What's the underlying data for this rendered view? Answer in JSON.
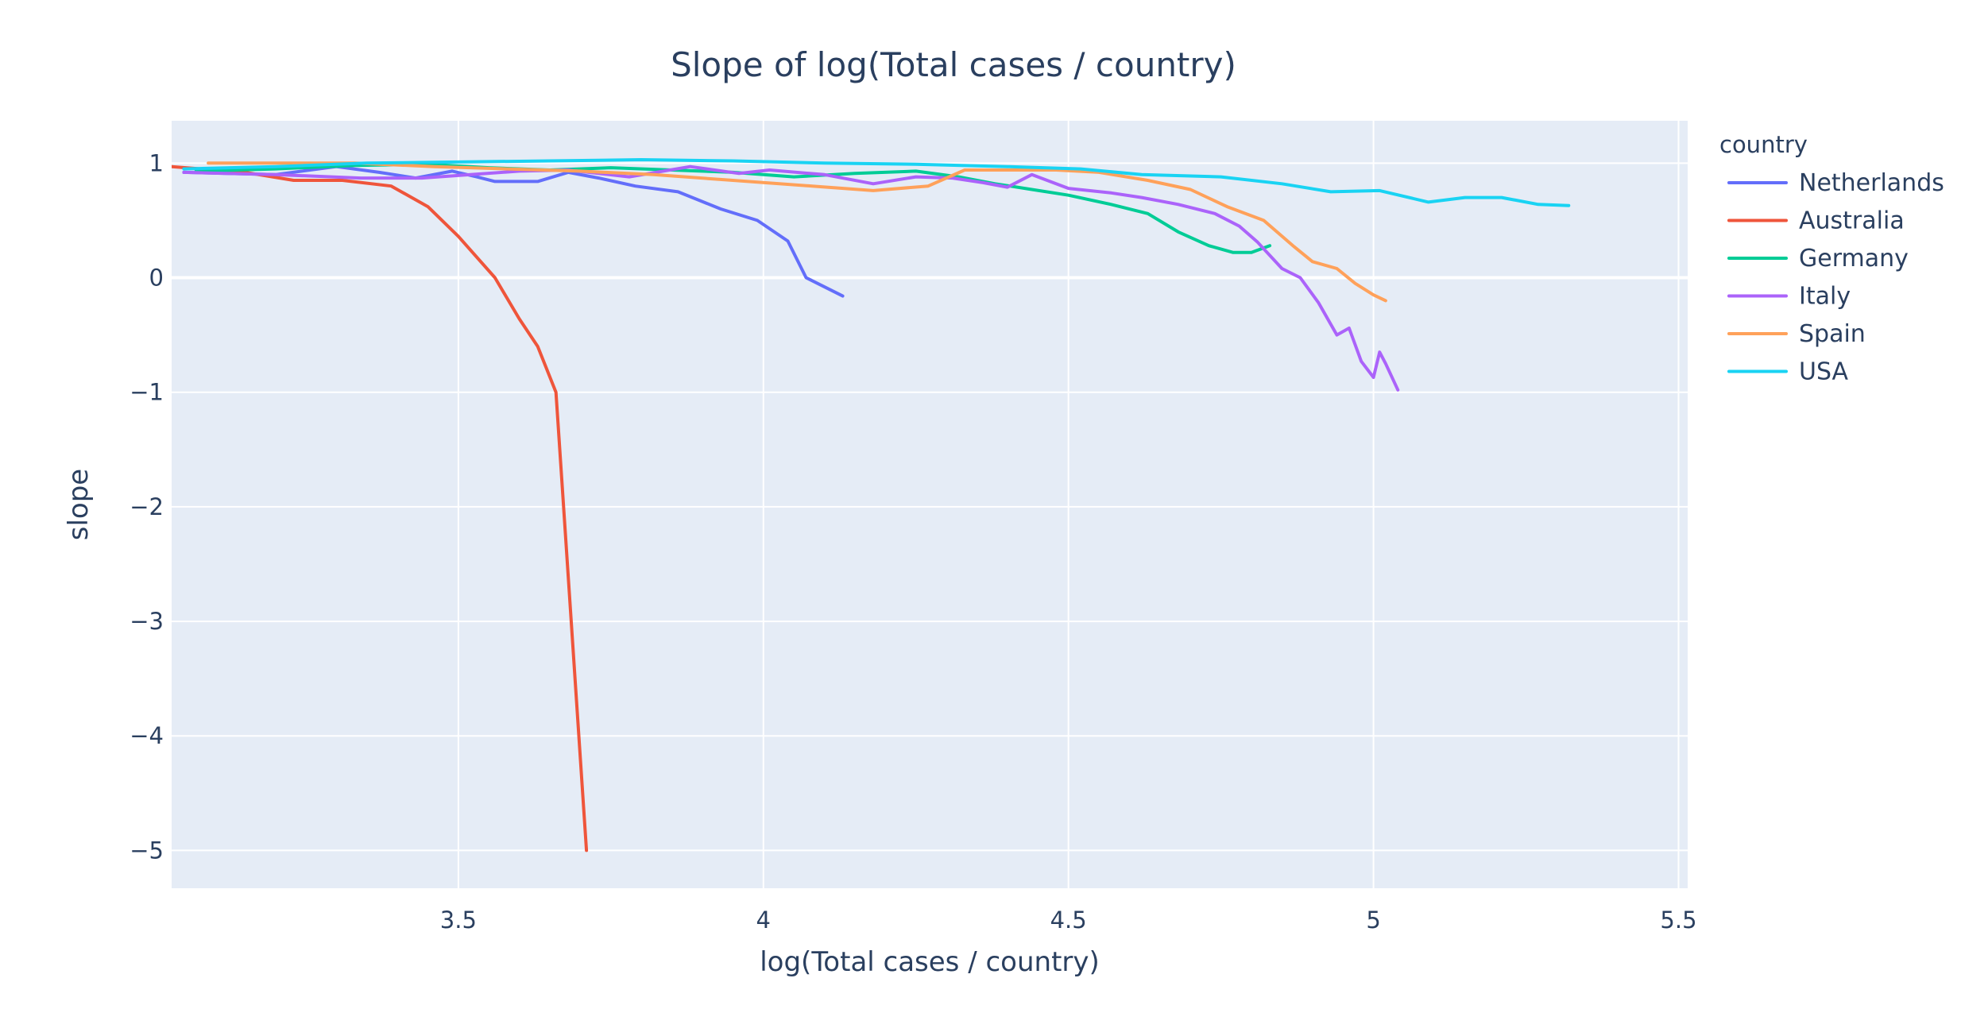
{
  "chart_data": {
    "type": "line",
    "title": "Slope of log(Total cases / country)",
    "xlabel": "log(Total cases / country)",
    "ylabel": "slope",
    "legend_title": "country",
    "legend_position": "right",
    "grid": true,
    "plot_background": "#e5ecf6",
    "grid_color": "#ffffff",
    "xlim": [
      3.03,
      5.515
    ],
    "ylim": [
      -5.33,
      1.37
    ],
    "x_ticks": [
      3.5,
      4,
      4.5,
      5,
      5.5
    ],
    "x_tick_labels": [
      "3.5",
      "4",
      "4.5",
      "5",
      "5.5"
    ],
    "y_ticks": [
      1,
      0,
      -1,
      -2,
      -3,
      -4,
      -5
    ],
    "y_tick_labels": [
      "1",
      "0",
      "−1",
      "−2",
      "−3",
      "−4",
      "−5"
    ],
    "series": [
      {
        "name": "Netherlands",
        "color": "#636efa",
        "x": [
          3.05,
          3.2,
          3.3,
          3.37,
          3.43,
          3.49,
          3.53,
          3.56,
          3.63,
          3.68,
          3.73,
          3.79,
          3.86,
          3.93,
          3.99,
          4.04,
          4.07,
          4.13
        ],
        "y": [
          0.92,
          0.9,
          0.97,
          0.92,
          0.87,
          0.93,
          0.88,
          0.84,
          0.84,
          0.92,
          0.87,
          0.8,
          0.75,
          0.6,
          0.5,
          0.32,
          0.0,
          -0.16
        ]
      },
      {
        "name": "Australia",
        "color": "#ef553b",
        "x": [
          3.03,
          3.15,
          3.23,
          3.31,
          3.39,
          3.45,
          3.5,
          3.56,
          3.6,
          3.63,
          3.66,
          3.71
        ],
        "y": [
          0.97,
          0.92,
          0.85,
          0.85,
          0.8,
          0.62,
          0.36,
          0.0,
          -0.36,
          -0.6,
          -1.0,
          -5.0
        ]
      },
      {
        "name": "Germany",
        "color": "#00cc96",
        "x": [
          3.07,
          3.2,
          3.33,
          3.45,
          3.55,
          3.65,
          3.75,
          3.85,
          3.95,
          4.05,
          4.15,
          4.25,
          4.32,
          4.38,
          4.44,
          4.5,
          4.57,
          4.63,
          4.68,
          4.73,
          4.77,
          4.8,
          4.83
        ],
        "y": [
          0.93,
          0.95,
          0.98,
          0.99,
          0.96,
          0.94,
          0.96,
          0.94,
          0.92,
          0.88,
          0.91,
          0.93,
          0.88,
          0.82,
          0.77,
          0.72,
          0.64,
          0.56,
          0.4,
          0.28,
          0.22,
          0.22,
          0.28
        ]
      },
      {
        "name": "Italy",
        "color": "#ab63fa",
        "x": [
          3.05,
          3.2,
          3.34,
          3.44,
          3.52,
          3.6,
          3.68,
          3.78,
          3.88,
          3.96,
          4.01,
          4.1,
          4.18,
          4.25,
          4.31,
          4.36,
          4.4,
          4.44,
          4.5,
          4.57,
          4.62,
          4.68,
          4.74,
          4.78,
          4.81,
          4.85,
          4.88,
          4.91,
          4.94,
          4.96,
          4.98,
          5.0,
          5.01,
          5.02,
          5.04
        ],
        "y": [
          0.92,
          0.9,
          0.87,
          0.87,
          0.9,
          0.93,
          0.94,
          0.88,
          0.97,
          0.91,
          0.94,
          0.9,
          0.82,
          0.88,
          0.87,
          0.83,
          0.79,
          0.9,
          0.78,
          0.74,
          0.7,
          0.64,
          0.56,
          0.45,
          0.31,
          0.08,
          0.0,
          -0.22,
          -0.5,
          -0.44,
          -0.73,
          -0.87,
          -0.65,
          -0.75,
          -0.98
        ]
      },
      {
        "name": "Spain",
        "color": "#ffa15a",
        "x": [
          3.09,
          3.2,
          3.33,
          3.46,
          3.58,
          3.7,
          3.82,
          3.95,
          4.08,
          4.18,
          4.27,
          4.33,
          4.4,
          4.48,
          4.55,
          4.63,
          4.7,
          4.76,
          4.82,
          4.87,
          4.9,
          4.94,
          4.97,
          5.0,
          5.02
        ],
        "y": [
          1.0,
          1.0,
          1.0,
          0.97,
          0.95,
          0.93,
          0.9,
          0.85,
          0.8,
          0.76,
          0.8,
          0.94,
          0.94,
          0.94,
          0.92,
          0.85,
          0.77,
          0.62,
          0.5,
          0.27,
          0.14,
          0.08,
          -0.05,
          -0.15,
          -0.2
        ]
      },
      {
        "name": "USA",
        "color": "#19d3f3",
        "x": [
          3.05,
          3.2,
          3.35,
          3.5,
          3.65,
          3.8,
          3.95,
          4.1,
          4.25,
          4.4,
          4.52,
          4.62,
          4.75,
          4.85,
          4.93,
          5.01,
          5.09,
          5.15,
          5.21,
          5.27,
          5.32
        ],
        "y": [
          0.95,
          0.97,
          1.0,
          1.01,
          1.02,
          1.03,
          1.02,
          1.0,
          0.99,
          0.97,
          0.95,
          0.9,
          0.88,
          0.82,
          0.75,
          0.76,
          0.66,
          0.7,
          0.7,
          0.64,
          0.63
        ]
      }
    ]
  }
}
